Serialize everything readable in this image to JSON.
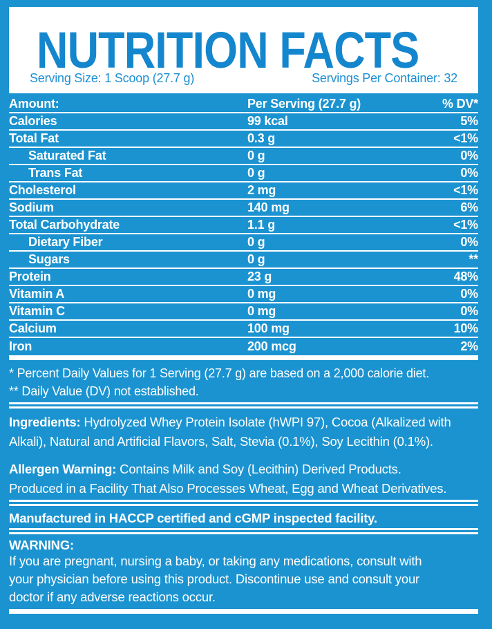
{
  "colors": {
    "background": "#1B93D0",
    "title_blue": "#1486CD",
    "accent_blue": "#1D8FD2",
    "text_on_blue": "#FFFFFF"
  },
  "header": {
    "title": "NUTRITION FACTS",
    "serving_size": "Serving Size: 1 Scoop (27.7 g)",
    "servings_per_container": "Servings Per Container: 32"
  },
  "table": {
    "header": {
      "label": "Amount:",
      "value": "Per Serving (27.7 g)",
      "dv": "% DV*"
    },
    "rows": [
      {
        "label": "Calories",
        "value": "99 kcal",
        "dv": "5%",
        "indent": false
      },
      {
        "label": "Total Fat",
        "value": "0.3 g",
        "dv": "<1%",
        "indent": false
      },
      {
        "label": "Saturated Fat",
        "value": "0 g",
        "dv": "0%",
        "indent": true
      },
      {
        "label": "Trans Fat",
        "value": "0 g",
        "dv": "0%",
        "indent": true
      },
      {
        "label": "Cholesterol",
        "value": "2 mg",
        "dv": "<1%",
        "indent": false
      },
      {
        "label": "Sodium",
        "value": "140 mg",
        "dv": "6%",
        "indent": false
      },
      {
        "label": "Total Carbohydrate",
        "value": "1.1 g",
        "dv": "<1%",
        "indent": false
      },
      {
        "label": "Dietary Fiber",
        "value": "0 g",
        "dv": "0%",
        "indent": true
      },
      {
        "label": "Sugars",
        "value": "0 g",
        "dv": "**",
        "indent": true
      },
      {
        "label": "Protein",
        "value": "23 g",
        "dv": "48%",
        "indent": false
      },
      {
        "label": "Vitamin A",
        "value": "0 mg",
        "dv": "0%",
        "indent": false
      },
      {
        "label": "Vitamin C",
        "value": "0 mg",
        "dv": "0%",
        "indent": false
      },
      {
        "label": "Calcium",
        "value": "100 mg",
        "dv": "10%",
        "indent": false
      },
      {
        "label": "Iron",
        "value": "200 mcg",
        "dv": "2%",
        "indent": false
      }
    ]
  },
  "footnotes": {
    "line1": "* Percent Daily Values for 1 Serving (27.7 g) are based on a 2,000 calorie diet.",
    "line2": "** Daily Value (DV) not established."
  },
  "ingredients": {
    "label": "Ingredients:",
    "line1_rest": " Hydrolyzed Whey Protein Isolate (hWPI 97), Cocoa (Alkalized with",
    "line2": "Alkali), Natural and Artificial Flavors, Salt, Stevia (0.1%), Soy Lecithin (0.1%)."
  },
  "allergen": {
    "label": "Allergen Warning:",
    "line1_rest": " Contains Milk and Soy (Lecithin) Derived Products.",
    "line2": "Produced in a Facility That Also Processes Wheat, Egg and Wheat Derivatives."
  },
  "manufactured": "Manufactured in HACCP certified and cGMP inspected facility.",
  "warning": {
    "label": "WARNING:",
    "lines": [
      "If you are pregnant, nursing a baby, or taking any medications, consult with",
      "your physician before using this product. Discontinue use and consult your",
      "doctor if any adverse reactions occur."
    ]
  }
}
